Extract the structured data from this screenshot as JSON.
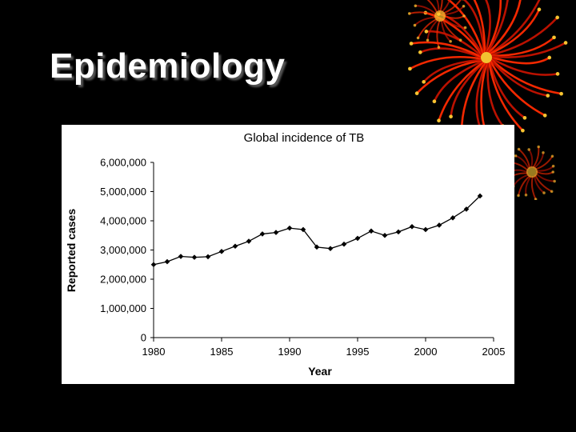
{
  "slide": {
    "title": "Epidemiology"
  },
  "decoration": {
    "name": "red-firework-ornament",
    "colors": [
      "#ff2a00",
      "#ffcc33",
      "#c41200"
    ]
  },
  "chart_data": {
    "type": "line",
    "title": "Global incidence of TB",
    "xlabel": "Year",
    "ylabel": "Reported cases",
    "xlim": [
      1980,
      2005
    ],
    "ylim": [
      0,
      6000000
    ],
    "x_ticks": [
      "1980",
      "1985",
      "1990",
      "1995",
      "2000",
      "2005"
    ],
    "x_tick_values": [
      1980,
      1985,
      1990,
      1995,
      2000,
      2005
    ],
    "y_ticks": [
      "0",
      "1,000,000",
      "2,000,000",
      "3,000,000",
      "4,000,000",
      "5,000,000",
      "6,000,000"
    ],
    "y_tick_values": [
      0,
      1000000,
      2000000,
      3000000,
      4000000,
      5000000,
      6000000
    ],
    "grid": false,
    "legend": "none",
    "series": [
      {
        "name": "Reported cases",
        "color": "#000000",
        "marker": "diamond",
        "x": [
          1980,
          1981,
          1982,
          1983,
          1984,
          1985,
          1986,
          1987,
          1988,
          1989,
          1990,
          1991,
          1992,
          1993,
          1994,
          1995,
          1996,
          1997,
          1998,
          1999,
          2000,
          2001,
          2002,
          2003,
          2004
        ],
        "values": [
          2500000,
          2600000,
          2780000,
          2750000,
          2770000,
          2950000,
          3130000,
          3300000,
          3550000,
          3600000,
          3750000,
          3700000,
          3100000,
          3050000,
          3200000,
          3400000,
          3650000,
          3500000,
          3620000,
          3800000,
          3700000,
          3850000,
          4100000,
          4400000,
          4850000
        ]
      }
    ]
  }
}
